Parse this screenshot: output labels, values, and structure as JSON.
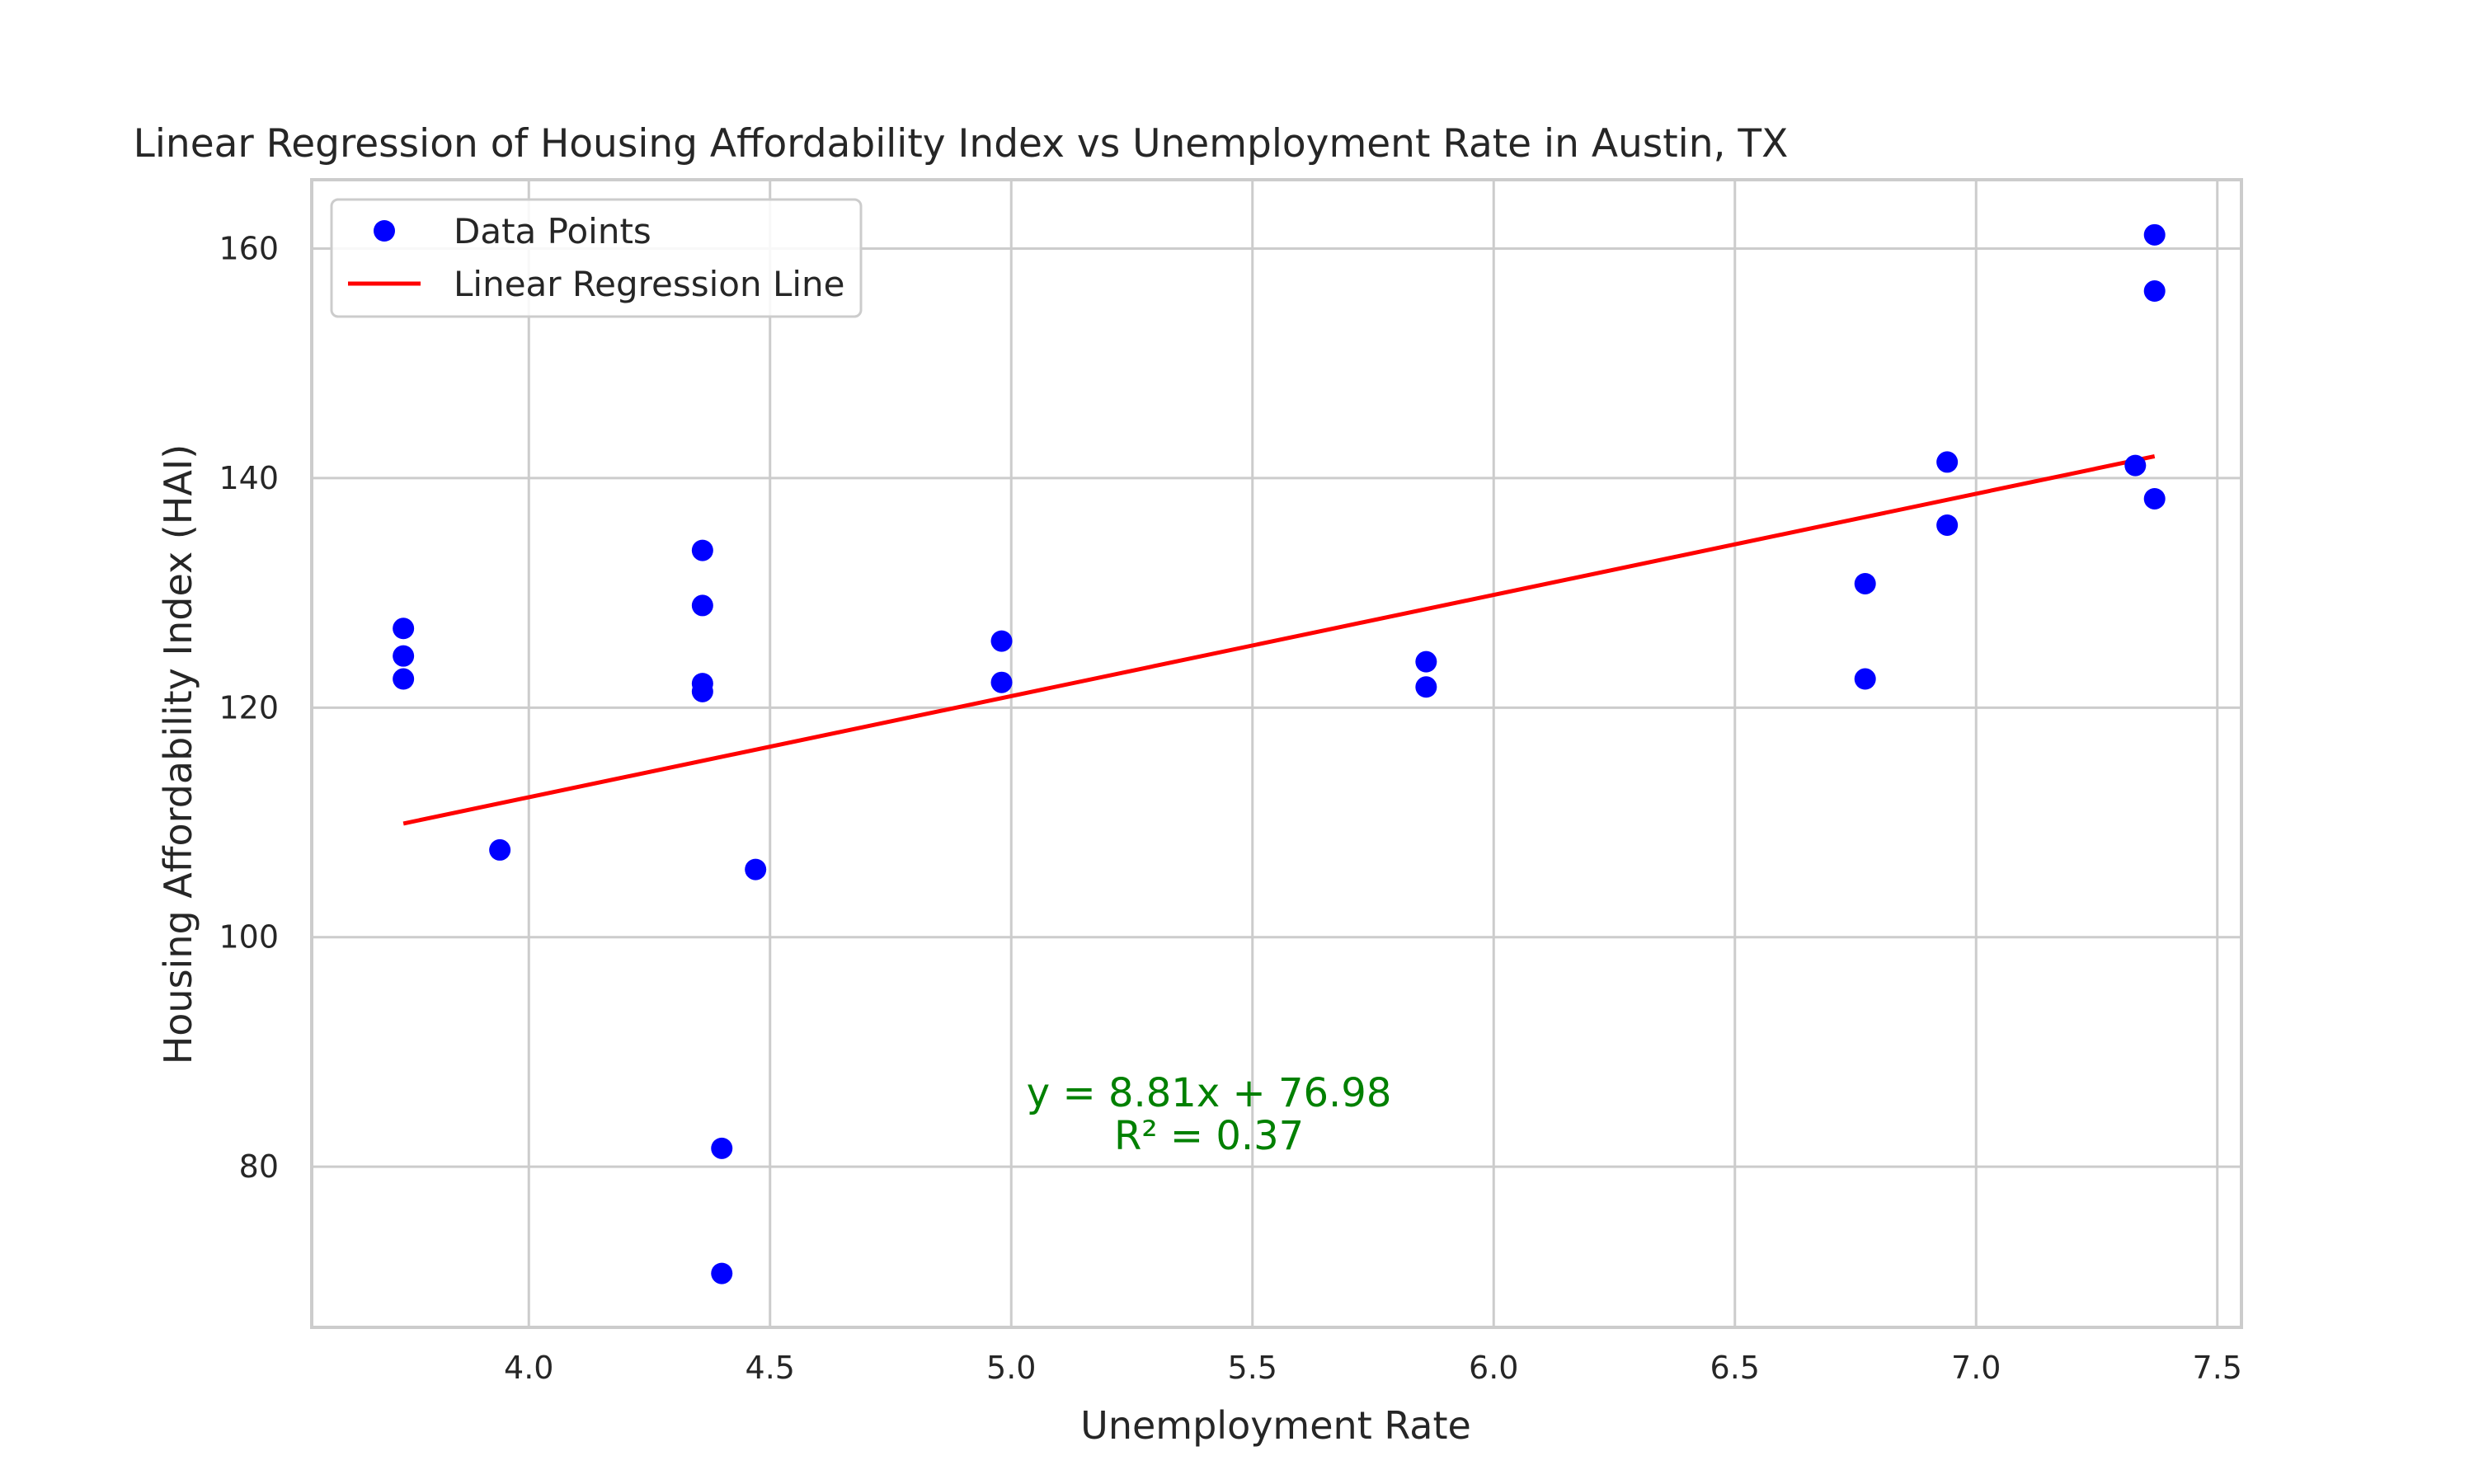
{
  "chart_data": {
    "type": "scatter",
    "title": "Linear Regression of Housing Affordability Index vs Unemployment Rate in Austin, TX",
    "xlabel": "Unemployment Rate",
    "ylabel": "Housing Affordability Index (HAI)",
    "xlim": [
      3.55,
      7.55
    ],
    "ylim": [
      66,
      166
    ],
    "x_ticks": [
      4.0,
      4.5,
      5.0,
      5.5,
      6.0,
      6.5,
      7.0,
      7.5
    ],
    "x_tick_labels": [
      "4.0",
      "4.5",
      "5.0",
      "5.5",
      "6.0",
      "6.5",
      "7.0",
      "7.5"
    ],
    "y_ticks": [
      80,
      100,
      120,
      140,
      160
    ],
    "y_tick_labels": [
      "80",
      "100",
      "120",
      "140",
      "160"
    ],
    "grid": true,
    "legend_position": "top-left",
    "series": [
      {
        "name": "Data Points",
        "kind": "scatter",
        "color": "#0000ff",
        "points": [
          {
            "x": 3.74,
            "y": 126.9
          },
          {
            "x": 3.74,
            "y": 124.5
          },
          {
            "x": 3.74,
            "y": 122.5
          },
          {
            "x": 3.94,
            "y": 107.6
          },
          {
            "x": 4.36,
            "y": 133.7
          },
          {
            "x": 4.36,
            "y": 128.9
          },
          {
            "x": 4.36,
            "y": 122.1
          },
          {
            "x": 4.36,
            "y": 121.4
          },
          {
            "x": 4.4,
            "y": 81.6
          },
          {
            "x": 4.4,
            "y": 70.7
          },
          {
            "x": 4.47,
            "y": 105.9
          },
          {
            "x": 4.98,
            "y": 125.8
          },
          {
            "x": 4.98,
            "y": 122.2
          },
          {
            "x": 5.86,
            "y": 124.0
          },
          {
            "x": 5.86,
            "y": 121.8
          },
          {
            "x": 6.77,
            "y": 130.8
          },
          {
            "x": 6.77,
            "y": 122.5
          },
          {
            "x": 6.94,
            "y": 141.4
          },
          {
            "x": 6.94,
            "y": 135.9
          },
          {
            "x": 7.33,
            "y": 141.1
          },
          {
            "x": 7.37,
            "y": 161.2
          },
          {
            "x": 7.37,
            "y": 156.3
          },
          {
            "x": 7.37,
            "y": 138.2
          }
        ]
      },
      {
        "name": "Linear Regression Line",
        "kind": "line",
        "color": "#ff0000",
        "points": [
          {
            "x": 3.74,
            "y": 109.9
          },
          {
            "x": 7.37,
            "y": 141.9
          }
        ]
      }
    ],
    "annotation": {
      "lines": [
        "y = 8.81x + 76.98",
        "R² = 0.37"
      ],
      "x": 5.41,
      "y": 81.5,
      "color": "#008000"
    }
  }
}
